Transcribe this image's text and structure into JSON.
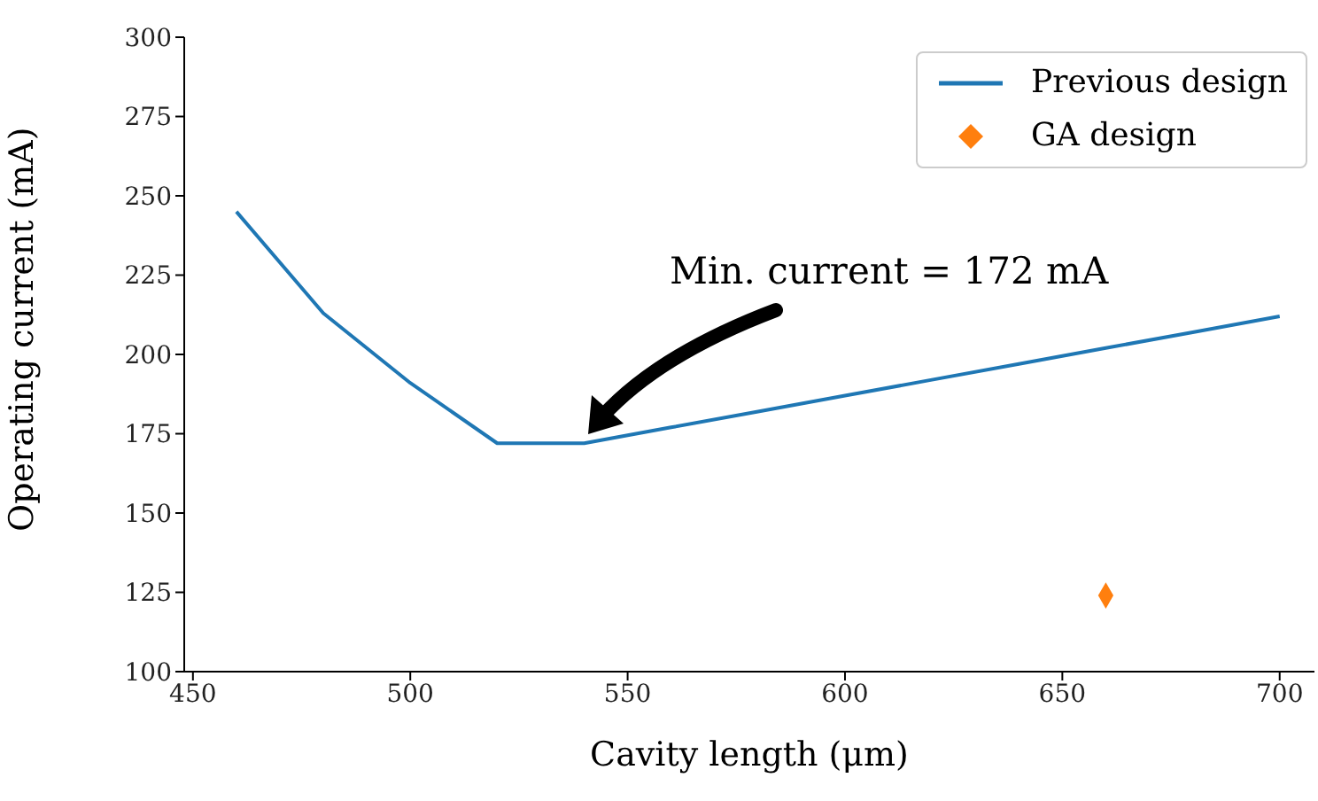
{
  "chart_data": {
    "type": "line",
    "xlabel": "Cavity length (μm)",
    "ylabel": "Operating current (mA)",
    "xlim": [
      448,
      708
    ],
    "xticks": [
      450,
      500,
      550,
      600,
      650,
      700
    ],
    "ylim": [
      100,
      300
    ],
    "yticks": [
      100,
      125,
      150,
      175,
      200,
      225,
      250,
      275,
      300
    ],
    "grid": false,
    "legend": "top right",
    "series": [
      {
        "name": "Previous design",
        "color": "#1f77b4",
        "marker": "none",
        "line_style": "solid",
        "x": [
          460,
          480,
          500,
          520,
          540,
          560,
          580,
          600,
          620,
          640,
          660,
          680,
          700
        ],
        "values": [
          245,
          213,
          191,
          172,
          172,
          177,
          182,
          187,
          192,
          197,
          202,
          207,
          212
        ]
      },
      {
        "name": "GA design",
        "type": "scatter",
        "color": "#ff7f0e",
        "marker": "diamond",
        "x": [
          660
        ],
        "values": [
          124
        ]
      }
    ],
    "annotations": [
      "Min. current = 172 mA"
    ]
  }
}
